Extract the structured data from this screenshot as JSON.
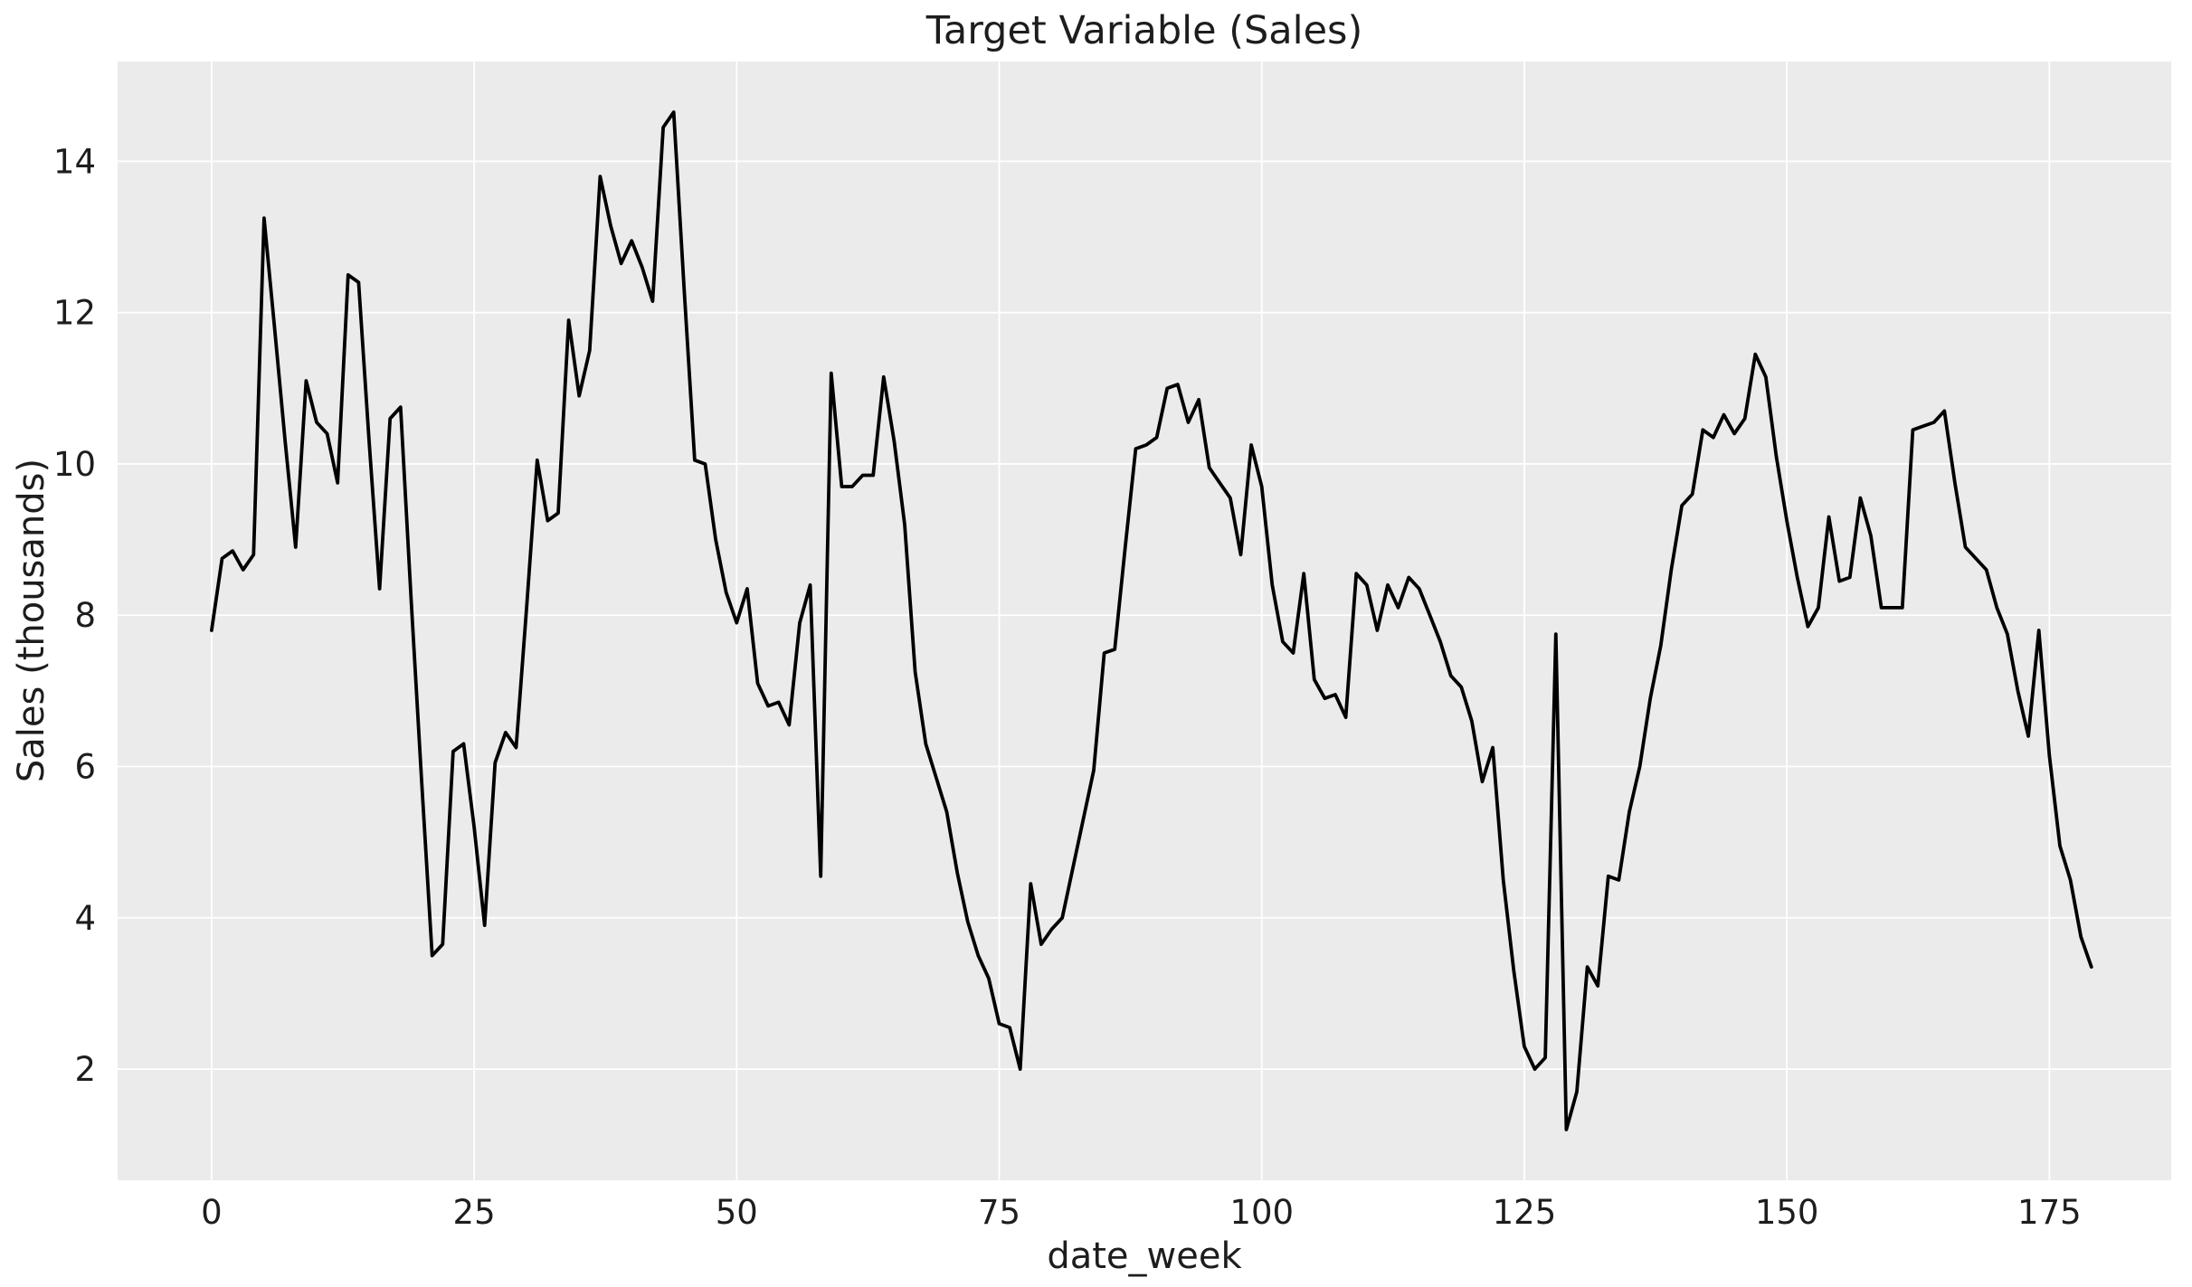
{
  "chart_data": {
    "type": "line",
    "title": "Target Variable (Sales)",
    "xlabel": "date_week",
    "ylabel": "Sales (thousands)",
    "x_start": 0,
    "x_step": 1,
    "series": [
      {
        "name": "sales",
        "values": [
          7.8,
          8.75,
          8.85,
          8.6,
          8.8,
          13.25,
          11.8,
          10.3,
          8.9,
          11.1,
          10.55,
          10.4,
          9.75,
          12.5,
          12.4,
          10.3,
          8.35,
          10.6,
          10.75,
          8.2,
          5.8,
          3.5,
          3.65,
          6.2,
          6.3,
          5.2,
          3.9,
          6.05,
          6.45,
          6.25,
          8.1,
          10.05,
          9.25,
          9.35,
          11.9,
          10.9,
          11.5,
          13.8,
          13.15,
          12.65,
          12.95,
          12.6,
          12.15,
          14.45,
          14.65,
          12.3,
          10.05,
          10.0,
          9.0,
          8.3,
          7.9,
          8.35,
          7.1,
          6.8,
          6.85,
          6.55,
          7.9,
          8.4,
          4.55,
          11.2,
          9.7,
          9.7,
          9.85,
          9.85,
          11.15,
          10.3,
          9.2,
          7.25,
          6.3,
          5.85,
          5.4,
          4.6,
          3.95,
          3.5,
          3.2,
          2.6,
          2.55,
          2.0,
          4.45,
          3.65,
          3.85,
          4.0,
          4.65,
          5.3,
          5.95,
          7.5,
          7.55,
          8.9,
          10.2,
          10.25,
          10.35,
          11.0,
          11.05,
          10.55,
          10.85,
          9.95,
          9.75,
          9.55,
          8.8,
          10.25,
          9.7,
          8.4,
          7.65,
          7.5,
          8.55,
          7.15,
          6.9,
          6.95,
          6.65,
          8.55,
          8.4,
          7.8,
          8.4,
          8.1,
          8.5,
          8.35,
          8.0,
          7.65,
          7.2,
          7.05,
          6.6,
          5.8,
          6.25,
          4.5,
          3.3,
          2.3,
          2.0,
          2.15,
          7.75,
          1.2,
          1.7,
          3.35,
          3.1,
          4.55,
          4.5,
          5.4,
          6.0,
          6.9,
          7.6,
          8.6,
          9.45,
          9.6,
          10.45,
          10.35,
          10.65,
          10.4,
          10.6,
          11.45,
          11.15,
          10.1,
          9.25,
          8.5,
          7.85,
          8.1,
          9.3,
          8.45,
          8.5,
          9.55,
          9.05,
          8.1,
          8.1,
          8.1,
          10.45,
          10.5,
          10.55,
          10.7,
          9.75,
          8.9,
          8.75,
          8.6,
          8.1,
          7.75,
          7.0,
          6.4,
          7.8,
          6.15,
          4.95,
          4.5,
          3.75,
          3.35
        ]
      }
    ],
    "xticks": [
      0,
      25,
      50,
      75,
      100,
      125,
      150,
      175
    ],
    "yticks": [
      2,
      4,
      6,
      8,
      10,
      12,
      14
    ],
    "xlim": [
      -8.95,
      186.6
    ],
    "ylim": [
      0.53,
      15.32
    ],
    "grid": true,
    "legend_position": "none",
    "colors": {
      "line": "#000000",
      "axes_background": "#ebebeb",
      "figure_background": "#ffffff",
      "grid": "#ffffff",
      "text": "#1d1d1d"
    },
    "line_width": 3.8
  }
}
